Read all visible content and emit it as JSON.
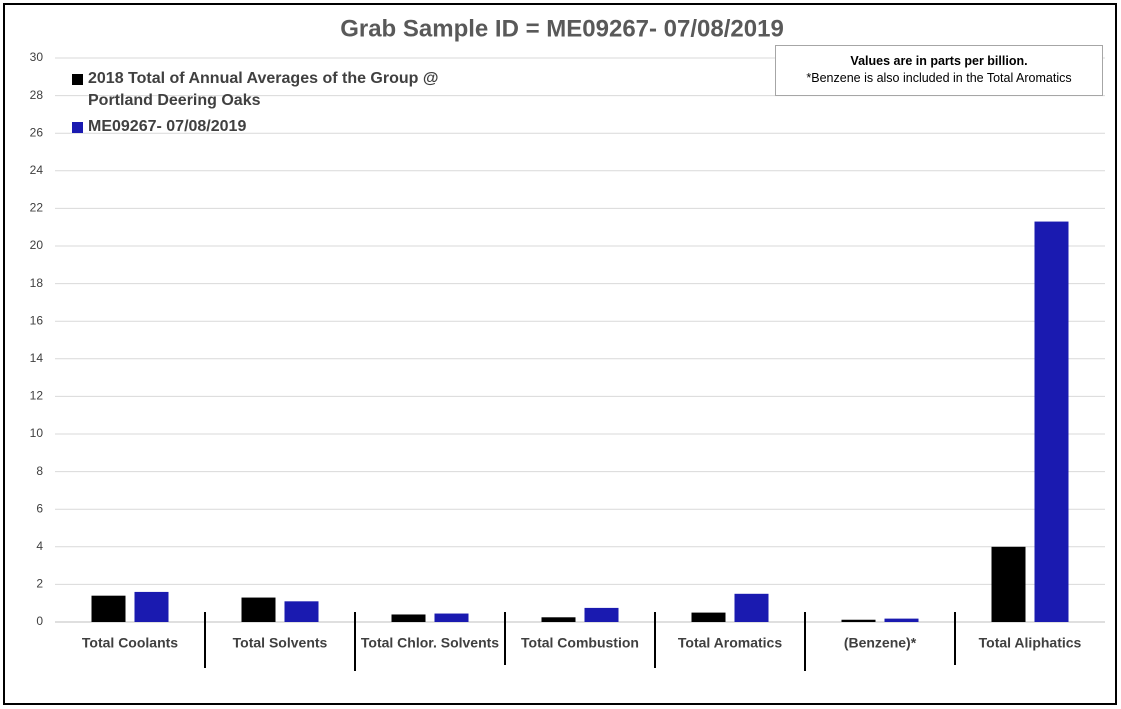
{
  "chart_data": {
    "type": "bar",
    "title": "Grab Sample ID = ME09267- 07/08/2019",
    "categories": [
      "Total Coolants",
      "Total Solvents",
      "Total Chlor. Solvents",
      "Total Combustion",
      "Total Aromatics",
      "(Benzene)*",
      "Total Aliphatics"
    ],
    "series": [
      {
        "name": "2018 Total of Annual Averages of the Group @ Portland Deering Oaks",
        "color": "#000000",
        "values": [
          1.4,
          1.3,
          0.4,
          0.25,
          0.5,
          0.12,
          4.0
        ]
      },
      {
        "name": "ME09267- 07/08/2019",
        "color": "#1a1ab0",
        "values": [
          1.6,
          1.1,
          0.45,
          0.75,
          1.5,
          0.18,
          21.3
        ]
      }
    ],
    "ylim": [
      0,
      30
    ],
    "yticks": [
      0,
      2,
      4,
      6,
      8,
      10,
      12,
      14,
      16,
      18,
      20,
      22,
      24,
      26,
      28,
      30
    ],
    "grid": true,
    "legend": "top-left",
    "annotations": [
      "Values are in parts per billion.",
      "*Benzene is also included in the Total Aromatics"
    ]
  }
}
